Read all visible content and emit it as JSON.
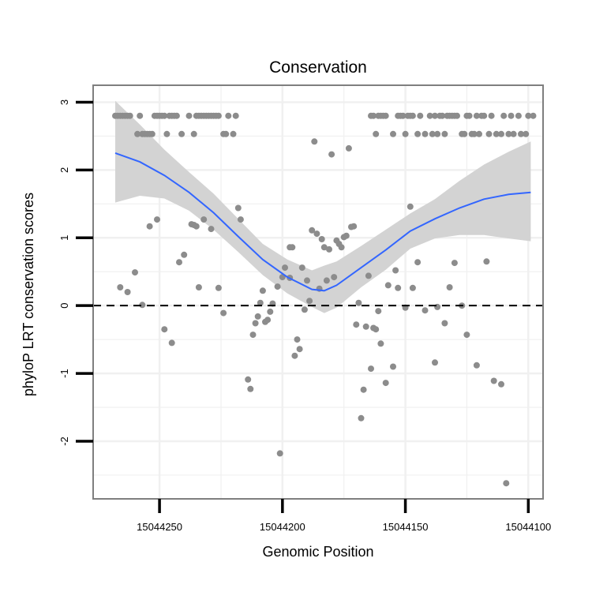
{
  "chart_data": {
    "type": "scatter",
    "title": "Conservation",
    "xlabel": "Genomic Position",
    "ylabel": "phyloP LRT conservation scores",
    "x_reversed": true,
    "xlim": [
      15044277,
      15044094
    ],
    "ylim": [
      -2.85,
      3.25
    ],
    "x_ticks": [
      15044250,
      15044200,
      15044150,
      15044100
    ],
    "y_ticks": [
      -2,
      -1,
      0,
      1,
      2,
      3
    ],
    "grid": true,
    "reference_line": {
      "y": 0,
      "style": "dashed"
    },
    "colors": {
      "points": "#8c8c8c",
      "smooth": "#3366ff",
      "band": "#d3d3d3",
      "panel_border": "#7f7f7f",
      "grid": "#f0f0f0"
    },
    "points": [
      [
        15044268,
        2.8
      ],
      [
        15044267,
        2.8
      ],
      [
        15044266,
        2.8
      ],
      [
        15044265,
        2.8
      ],
      [
        15044264,
        2.8
      ],
      [
        15044263,
        2.8
      ],
      [
        15044262,
        2.8
      ],
      [
        15044259,
        2.53
      ],
      [
        15044258,
        2.8
      ],
      [
        15044257,
        2.53
      ],
      [
        15044256,
        2.53
      ],
      [
        15044255,
        2.53
      ],
      [
        15044254,
        2.53
      ],
      [
        15044253,
        2.53
      ],
      [
        15044252,
        2.8
      ],
      [
        15044251,
        2.8
      ],
      [
        15044250,
        2.8
      ],
      [
        15044249,
        2.8
      ],
      [
        15044248,
        2.8
      ],
      [
        15044247,
        2.53
      ],
      [
        15044246,
        2.8
      ],
      [
        15044245,
        2.8
      ],
      [
        15044244,
        2.8
      ],
      [
        15044243,
        2.8
      ],
      [
        15044241,
        2.53
      ],
      [
        15044238,
        2.8
      ],
      [
        15044236,
        2.53
      ],
      [
        15044235,
        2.8
      ],
      [
        15044234,
        2.8
      ],
      [
        15044233,
        2.8
      ],
      [
        15044232,
        2.8
      ],
      [
        15044231,
        2.8
      ],
      [
        15044230,
        2.8
      ],
      [
        15044229,
        2.8
      ],
      [
        15044228,
        2.8
      ],
      [
        15044227,
        2.8
      ],
      [
        15044226,
        2.8
      ],
      [
        15044224,
        2.53
      ],
      [
        15044223,
        2.53
      ],
      [
        15044222,
        2.8
      ],
      [
        15044220,
        2.53
      ],
      [
        15044219,
        2.8
      ],
      [
        15044164,
        2.8
      ],
      [
        15044163,
        2.8
      ],
      [
        15044162,
        2.53
      ],
      [
        15044161,
        2.8
      ],
      [
        15044160,
        2.8
      ],
      [
        15044159,
        2.8
      ],
      [
        15044158,
        2.8
      ],
      [
        15044155,
        2.53
      ],
      [
        15044153,
        2.8
      ],
      [
        15044152,
        2.8
      ],
      [
        15044151,
        2.8
      ],
      [
        15044150,
        2.53
      ],
      [
        15044149,
        2.8
      ],
      [
        15044148,
        2.8
      ],
      [
        15044147,
        2.8
      ],
      [
        15044145,
        2.53
      ],
      [
        15044144,
        2.8
      ],
      [
        15044142,
        2.53
      ],
      [
        15044140,
        2.8
      ],
      [
        15044139,
        2.53
      ],
      [
        15044138,
        2.8
      ],
      [
        15044137,
        2.53
      ],
      [
        15044136,
        2.8
      ],
      [
        15044135,
        2.8
      ],
      [
        15044134,
        2.53
      ],
      [
        15044133,
        2.8
      ],
      [
        15044132,
        2.8
      ],
      [
        15044131,
        2.8
      ],
      [
        15044130,
        2.8
      ],
      [
        15044129,
        2.8
      ],
      [
        15044127,
        2.53
      ],
      [
        15044126,
        2.53
      ],
      [
        15044125,
        2.8
      ],
      [
        15044124,
        2.8
      ],
      [
        15044123,
        2.53
      ],
      [
        15044122,
        2.53
      ],
      [
        15044121,
        2.8
      ],
      [
        15044120,
        2.53
      ],
      [
        15044119,
        2.8
      ],
      [
        15044118,
        2.8
      ],
      [
        15044116,
        2.53
      ],
      [
        15044115,
        2.8
      ],
      [
        15044113,
        2.53
      ],
      [
        15044111,
        2.53
      ],
      [
        15044110,
        2.8
      ],
      [
        15044108,
        2.53
      ],
      [
        15044107,
        2.8
      ],
      [
        15044106,
        2.53
      ],
      [
        15044104,
        2.8
      ],
      [
        15044103,
        2.53
      ],
      [
        15044101,
        2.53
      ],
      [
        15044100,
        2.8
      ],
      [
        15044098,
        2.8
      ],
      [
        15044266,
        0.27
      ],
      [
        15044263,
        0.2
      ],
      [
        15044260,
        0.49
      ],
      [
        15044257,
        0.01
      ],
      [
        15044254,
        1.17
      ],
      [
        15044251,
        1.27
      ],
      [
        15044248,
        -0.35
      ],
      [
        15044245,
        -0.55
      ],
      [
        15044242,
        0.64
      ],
      [
        15044240,
        0.75
      ],
      [
        15044237,
        1.2
      ],
      [
        15044236,
        1.19
      ],
      [
        15044235,
        1.17
      ],
      [
        15044234,
        0.27
      ],
      [
        15044232,
        1.27
      ],
      [
        15044229,
        1.13
      ],
      [
        15044226,
        0.26
      ],
      [
        15044224,
        -0.11
      ],
      [
        15044218,
        1.44
      ],
      [
        15044217,
        1.27
      ],
      [
        15044214,
        -1.09
      ],
      [
        15044213,
        -1.23
      ],
      [
        15044212,
        -0.43
      ],
      [
        15044211,
        -0.26
      ],
      [
        15044210,
        -0.16
      ],
      [
        15044209,
        0.04
      ],
      [
        15044208,
        0.22
      ],
      [
        15044207,
        -0.24
      ],
      [
        15044206,
        -0.21
      ],
      [
        15044205,
        -0.09
      ],
      [
        15044204,
        0.03
      ],
      [
        15044202,
        0.28
      ],
      [
        15044201,
        -2.18
      ],
      [
        15044200,
        0.42
      ],
      [
        15044199,
        0.56
      ],
      [
        15044197,
        0.86
      ],
      [
        15044197,
        0.41
      ],
      [
        15044196,
        0.86
      ],
      [
        15044195,
        -0.74
      ],
      [
        15044194,
        -0.5
      ],
      [
        15044193,
        -0.64
      ],
      [
        15044192,
        0.56
      ],
      [
        15044191,
        -0.06
      ],
      [
        15044190,
        0.37
      ],
      [
        15044189,
        0.07
      ],
      [
        15044188,
        1.11
      ],
      [
        15044187,
        2.42
      ],
      [
        15044186,
        1.06
      ],
      [
        15044185,
        0.25
      ],
      [
        15044184,
        0.98
      ],
      [
        15044183,
        0.86
      ],
      [
        15044182,
        0.37
      ],
      [
        15044181,
        0.83
      ],
      [
        15044180,
        2.23
      ],
      [
        15044179,
        0.42
      ],
      [
        15044178,
        0.96
      ],
      [
        15044177,
        0.91
      ],
      [
        15044176,
        0.86
      ],
      [
        15044175,
        1.01
      ],
      [
        15044174,
        1.03
      ],
      [
        15044173,
        2.32
      ],
      [
        15044172,
        1.16
      ],
      [
        15044171,
        1.17
      ],
      [
        15044170,
        -0.28
      ],
      [
        15044169,
        0.04
      ],
      [
        15044168,
        -1.66
      ],
      [
        15044167,
        -1.24
      ],
      [
        15044166,
        -0.31
      ],
      [
        15044165,
        0.44
      ],
      [
        15044164,
        -0.93
      ],
      [
        15044163,
        -0.33
      ],
      [
        15044162,
        -0.35
      ],
      [
        15044161,
        -0.08
      ],
      [
        15044160,
        -0.56
      ],
      [
        15044158,
        -1.14
      ],
      [
        15044157,
        0.3
      ],
      [
        15044155,
        -0.9
      ],
      [
        15044154,
        0.52
      ],
      [
        15044153,
        0.26
      ],
      [
        15044150,
        -0.03
      ],
      [
        15044148,
        1.46
      ],
      [
        15044147,
        0.26
      ],
      [
        15044145,
        0.64
      ],
      [
        15044142,
        -0.07
      ],
      [
        15044138,
        -0.84
      ],
      [
        15044137,
        -0.02
      ],
      [
        15044134,
        -0.26
      ],
      [
        15044132,
        0.27
      ],
      [
        15044130,
        0.63
      ],
      [
        15044127,
        0.0
      ],
      [
        15044125,
        -0.43
      ],
      [
        15044121,
        -0.88
      ],
      [
        15044117,
        0.65
      ],
      [
        15044114,
        -1.11
      ],
      [
        15044111,
        -1.16
      ],
      [
        15044109,
        -2.62
      ]
    ],
    "smooth": {
      "x": [
        15044268,
        15044258,
        15044248,
        15044238,
        15044228,
        15044218,
        15044208,
        15044198,
        15044188,
        15044183,
        15044178,
        15044168,
        15044158,
        15044148,
        15044138,
        15044128,
        15044118,
        15044108,
        15044099
      ],
      "y": [
        2.25,
        2.12,
        1.92,
        1.67,
        1.37,
        1.02,
        0.68,
        0.42,
        0.24,
        0.22,
        0.3,
        0.56,
        0.82,
        1.1,
        1.28,
        1.44,
        1.57,
        1.64,
        1.67
      ]
    },
    "ci": {
      "lower": [
        1.52,
        1.62,
        1.58,
        1.4,
        1.12,
        0.79,
        0.45,
        0.18,
        -0.02,
        -0.11,
        -0.03,
        0.27,
        0.53,
        0.84,
        0.99,
        1.04,
        1.04,
        0.99,
        0.95
      ],
      "upper": [
        3.02,
        2.67,
        2.3,
        1.97,
        1.65,
        1.28,
        0.91,
        0.68,
        0.52,
        0.59,
        0.65,
        0.88,
        1.12,
        1.36,
        1.57,
        1.84,
        2.08,
        2.27,
        2.42
      ]
    }
  }
}
